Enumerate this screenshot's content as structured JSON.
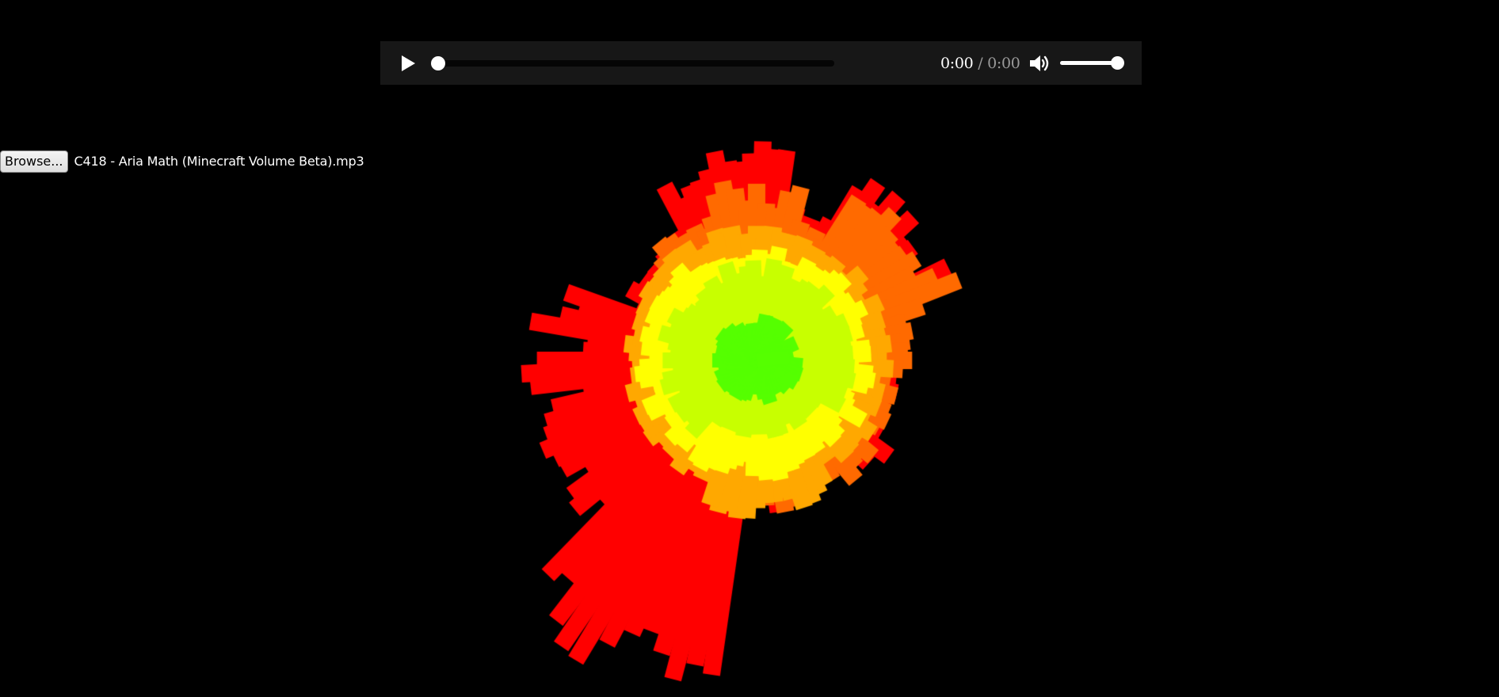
{
  "player": {
    "current_time": "0:00",
    "separator": "/",
    "duration": "0:00",
    "progress": 0,
    "volume": 1
  },
  "file_input": {
    "button_label": "Browse...",
    "file_name": "C418 - Aria Math (Minecraft Volume Beta).mp3"
  },
  "visualizer": {
    "type": "radial-frequency-bars",
    "colors": {
      "outer": "#ff0000",
      "mid_outer": "#ff6a00",
      "mid": "#ffa800",
      "inner": "#ffff00",
      "center": "#55ff00"
    }
  }
}
